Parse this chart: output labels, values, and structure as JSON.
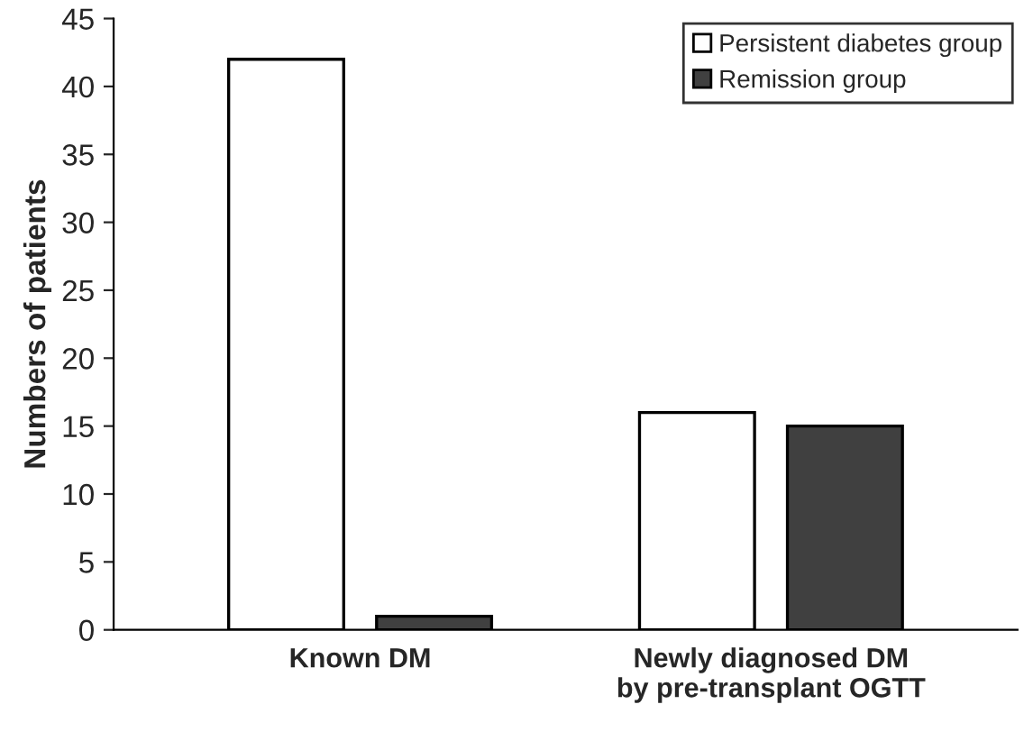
{
  "chart_data": {
    "type": "bar",
    "ylabel": "Numbers of patients",
    "categories": [
      "Known DM",
      "Newly diagnosed DM\nby pre-transplant OGTT"
    ],
    "series": [
      {
        "name": "Persistent diabetes group",
        "color": "#ffffff",
        "values": [
          42,
          16
        ]
      },
      {
        "name": "Remission group",
        "color": "#404040",
        "values": [
          1,
          15
        ]
      }
    ],
    "ylim": [
      0,
      45
    ],
    "yticks": [
      0,
      5,
      10,
      15,
      20,
      25,
      30,
      35,
      40,
      45
    ],
    "grid": false,
    "legend": "top right"
  }
}
